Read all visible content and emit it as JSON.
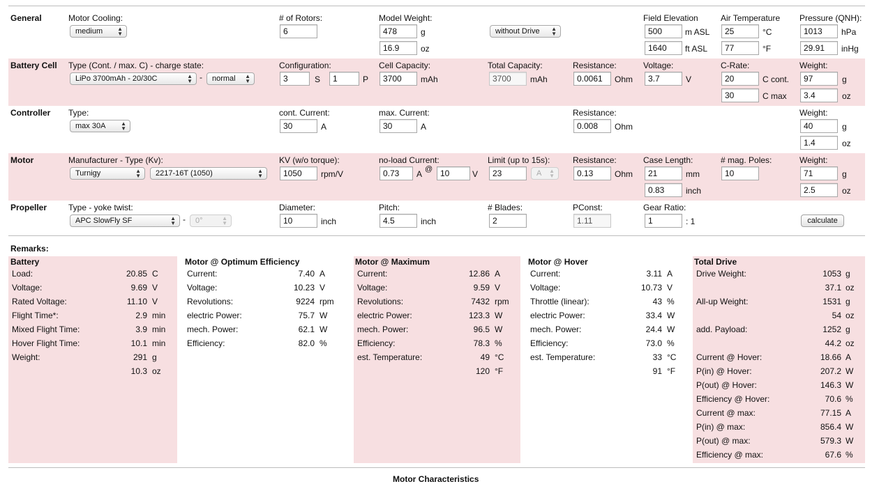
{
  "general": {
    "section": "General",
    "motor_cooling": {
      "label": "Motor Cooling:",
      "value": "medium"
    },
    "rotors": {
      "label": "# of Rotors:",
      "value": "6"
    },
    "model_weight": {
      "label": "Model Weight:",
      "value_g": "478",
      "unit_g": "g",
      "value_oz": "16.9",
      "unit_oz": "oz"
    },
    "drive_option": "without Drive",
    "field_elevation": {
      "label": "Field Elevation",
      "value_m": "500",
      "unit_m": "m ASL",
      "value_ft": "1640",
      "unit_ft": "ft ASL"
    },
    "air_temperature": {
      "label": "Air Temperature",
      "value_c": "25",
      "unit_c": "°C",
      "value_f": "77",
      "unit_f": "°F"
    },
    "pressure": {
      "label": "Pressure (QNH):",
      "value_hpa": "1013",
      "unit_hpa": "hPa",
      "value_inhg": "29.91",
      "unit_inhg": "inHg"
    }
  },
  "battery": {
    "section": "Battery Cell",
    "type_label": "Type (Cont. / max. C) - charge state:",
    "type_value": "LiPo 3700mAh - 20/30C",
    "dash": "-",
    "charge_state": "normal",
    "configuration": {
      "label": "Configuration:",
      "s_value": "3",
      "s_unit": "S",
      "p_value": "1",
      "p_unit": "P"
    },
    "cell_capacity": {
      "label": "Cell Capacity:",
      "value": "3700",
      "unit": "mAh"
    },
    "total_capacity": {
      "label": "Total Capacity:",
      "value": "3700",
      "unit": "mAh"
    },
    "resistance": {
      "label": "Resistance:",
      "value": "0.0061",
      "unit": "Ohm"
    },
    "voltage": {
      "label": "Voltage:",
      "value": "3.7",
      "unit": "V"
    },
    "c_rate": {
      "label": "C-Rate:",
      "cont_value": "20",
      "cont_unit": "C cont.",
      "max_value": "30",
      "max_unit": "C max"
    },
    "weight": {
      "label": "Weight:",
      "value_g": "97",
      "unit_g": "g",
      "value_oz": "3.4",
      "unit_oz": "oz"
    }
  },
  "controller": {
    "section": "Controller",
    "type_label": "Type:",
    "type_value": "max 30A",
    "cont_current": {
      "label": "cont. Current:",
      "value": "30",
      "unit": "A"
    },
    "max_current": {
      "label": "max. Current:",
      "value": "30",
      "unit": "A"
    },
    "resistance": {
      "label": "Resistance:",
      "value": "0.008",
      "unit": "Ohm"
    },
    "weight": {
      "label": "Weight:",
      "value_g": "40",
      "unit_g": "g",
      "value_oz": "1.4",
      "unit_oz": "oz"
    }
  },
  "motor": {
    "section": "Motor",
    "type_label": "Manufacturer - Type (Kv):",
    "manufacturer": "Turnigy",
    "model": "2217-16T (1050)",
    "kv": {
      "label": "KV (w/o torque):",
      "value": "1050",
      "unit": "rpm/V"
    },
    "no_load": {
      "label": "no-load Current:",
      "value": "0.73",
      "unit": "A",
      "at": "@",
      "volt_value": "10",
      "volt_unit": "V"
    },
    "limit": {
      "label": "Limit (up to 15s):",
      "value": "23",
      "unit_select": "A"
    },
    "resistance": {
      "label": "Resistance:",
      "value": "0.13",
      "unit": "Ohm"
    },
    "case_length": {
      "label": "Case Length:",
      "value_mm": "21",
      "unit_mm": "mm",
      "value_inch": "0.83",
      "unit_inch": "inch"
    },
    "mag_poles": {
      "label": "# mag. Poles:",
      "value": "10"
    },
    "weight": {
      "label": "Weight:",
      "value_g": "71",
      "unit_g": "g",
      "value_oz": "2.5",
      "unit_oz": "oz"
    }
  },
  "propeller": {
    "section": "Propeller",
    "type_label": "Type - yoke twist:",
    "type_value": "APC SlowFly SF",
    "dash": "-",
    "yoke_twist": "0°",
    "diameter": {
      "label": "Diameter:",
      "value": "10",
      "unit": "inch"
    },
    "pitch": {
      "label": "Pitch:",
      "value": "4.5",
      "unit": "inch"
    },
    "blades": {
      "label": "# Blades:",
      "value": "2"
    },
    "pconst": {
      "label": "PConst:",
      "value": "1.11"
    },
    "gear_ratio": {
      "label": "Gear Ratio:",
      "value": "1",
      "suffix": ": 1"
    },
    "calculate": "calculate"
  },
  "remarks_label": "Remarks:",
  "results": {
    "battery": {
      "title": "Battery",
      "rows": [
        {
          "label": "Load:",
          "value": "20.85",
          "unit": "C"
        },
        {
          "label": "Voltage:",
          "value": "9.69",
          "unit": "V"
        },
        {
          "label": "Rated Voltage:",
          "value": "11.10",
          "unit": "V"
        },
        {
          "label": "Flight Time*:",
          "value": "2.9",
          "unit": "min"
        },
        {
          "label": "Mixed Flight Time:",
          "value": "3.9",
          "unit": "min"
        },
        {
          "label": "Hover Flight Time:",
          "value": "10.1",
          "unit": "min"
        },
        {
          "label": "Weight:",
          "value": "291",
          "unit": "g"
        },
        {
          "label": "",
          "value": "10.3",
          "unit": "oz"
        }
      ]
    },
    "optimum": {
      "title": "Motor @ Optimum Efficiency",
      "rows": [
        {
          "label": "Current:",
          "value": "7.40",
          "unit": "A"
        },
        {
          "label": "Voltage:",
          "value": "10.23",
          "unit": "V"
        },
        {
          "label": "Revolutions:",
          "value": "9224",
          "unit": "rpm"
        },
        {
          "label": "electric Power:",
          "value": "75.7",
          "unit": "W"
        },
        {
          "label": "mech. Power:",
          "value": "62.1",
          "unit": "W"
        },
        {
          "label": "Efficiency:",
          "value": "82.0",
          "unit": "%"
        }
      ]
    },
    "maximum": {
      "title": "Motor @ Maximum",
      "rows": [
        {
          "label": "Current:",
          "value": "12.86",
          "unit": "A"
        },
        {
          "label": "Voltage:",
          "value": "9.59",
          "unit": "V"
        },
        {
          "label": "Revolutions:",
          "value": "7432",
          "unit": "rpm"
        },
        {
          "label": "electric Power:",
          "value": "123.3",
          "unit": "W"
        },
        {
          "label": "mech. Power:",
          "value": "96.5",
          "unit": "W"
        },
        {
          "label": "Efficiency:",
          "value": "78.3",
          "unit": "%"
        },
        {
          "label": "est. Temperature:",
          "value": "49",
          "unit": "°C"
        },
        {
          "label": "",
          "value": "120",
          "unit": "°F"
        }
      ]
    },
    "hover": {
      "title": "Motor @ Hover",
      "rows": [
        {
          "label": "Current:",
          "value": "3.11",
          "unit": "A"
        },
        {
          "label": "Voltage:",
          "value": "10.73",
          "unit": "V"
        },
        {
          "label": "Throttle (linear):",
          "value": "43",
          "unit": "%"
        },
        {
          "label": "electric Power:",
          "value": "33.4",
          "unit": "W"
        },
        {
          "label": "mech. Power:",
          "value": "24.4",
          "unit": "W"
        },
        {
          "label": "Efficiency:",
          "value": "73.0",
          "unit": "%"
        },
        {
          "label": "est. Temperature:",
          "value": "33",
          "unit": "°C"
        },
        {
          "label": "",
          "value": "91",
          "unit": "°F"
        }
      ]
    },
    "total": {
      "title": "Total Drive",
      "rows": [
        {
          "label": "Drive Weight:",
          "value": "1053",
          "unit": "g"
        },
        {
          "label": "",
          "value": "37.1",
          "unit": "oz"
        },
        {
          "label": "All-up Weight:",
          "value": "1531",
          "unit": "g"
        },
        {
          "label": "",
          "value": "54",
          "unit": "oz"
        },
        {
          "label": "add. Payload:",
          "value": "1252",
          "unit": "g"
        },
        {
          "label": "",
          "value": "44.2",
          "unit": "oz"
        },
        {
          "label": "Current @ Hover:",
          "value": "18.66",
          "unit": "A"
        },
        {
          "label": "P(in) @ Hover:",
          "value": "207.2",
          "unit": "W"
        },
        {
          "label": "P(out) @ Hover:",
          "value": "146.3",
          "unit": "W"
        },
        {
          "label": "Efficiency @ Hover:",
          "value": "70.6",
          "unit": "%"
        },
        {
          "label": "Current @ max:",
          "value": "77.15",
          "unit": "A"
        },
        {
          "label": "P(in) @ max:",
          "value": "856.4",
          "unit": "W"
        },
        {
          "label": "P(out) @ max:",
          "value": "579.3",
          "unit": "W"
        },
        {
          "label": "Efficiency @ max:",
          "value": "67.6",
          "unit": "%"
        }
      ]
    }
  },
  "motor_characteristics": "Motor Characteristics"
}
